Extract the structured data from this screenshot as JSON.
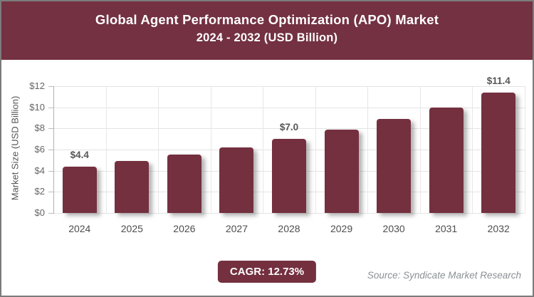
{
  "header": {
    "title_line1": "Global Agent Performance Optimization (APO) Market",
    "title_line2": "2024 - 2032 (USD Billion)"
  },
  "chart_data": {
    "type": "bar",
    "title": "Global Agent Performance Optimization (APO) Market 2024 - 2032 (USD Billion)",
    "categories": [
      "2024",
      "2025",
      "2026",
      "2027",
      "2028",
      "2029",
      "2030",
      "2031",
      "2032"
    ],
    "values": [
      4.4,
      4.9,
      5.5,
      6.2,
      7.0,
      7.9,
      8.9,
      10.0,
      11.4
    ],
    "point_labels": [
      "$4.4",
      null,
      null,
      null,
      "$7.0",
      null,
      null,
      null,
      "$11.4"
    ],
    "xlabel": "",
    "ylabel": "Market Size (USD Billion)",
    "ylim": [
      0,
      12
    ],
    "ytick_step": 2,
    "ytick_prefix": "$",
    "grid": true,
    "legend": false
  },
  "footer": {
    "cagr_label": "CAGR: 12.73%",
    "source": "Source: Syndicate Market Research"
  },
  "colors": {
    "header_bg": "#733142",
    "bar": "#74303F",
    "badge_bg": "#74303F",
    "title_text": "#ffffff"
  }
}
